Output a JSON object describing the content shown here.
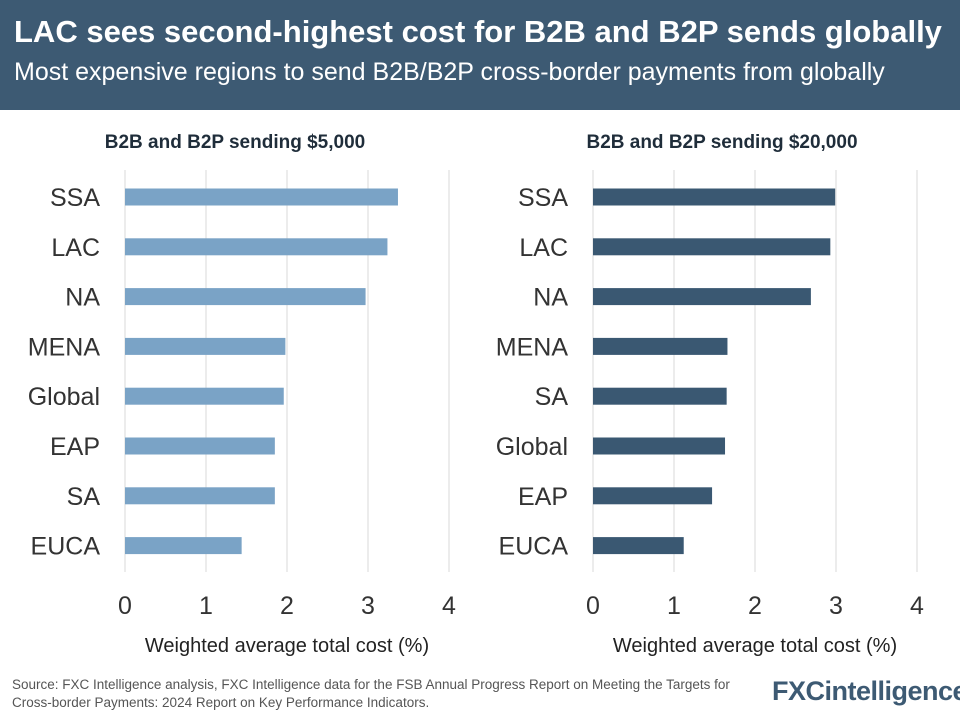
{
  "header": {
    "title": "LAC sees second-highest cost for B2B and B2P sends globally",
    "subtitle": "Most expensive regions to send B2B/B2P cross-border payments from globally"
  },
  "chart_data": [
    {
      "type": "bar",
      "orientation": "horizontal",
      "title": "B2B and B2P sending $5,000",
      "categories": [
        "SSA",
        "LAC",
        "NA",
        "MENA",
        "Global",
        "EAP",
        "SA",
        "EUCA"
      ],
      "values": [
        3.37,
        3.24,
        2.97,
        1.98,
        1.96,
        1.85,
        1.85,
        1.44
      ],
      "xlabel": "Weighted average total cost (%)",
      "xlim": [
        0,
        4
      ],
      "ticks": [
        "0",
        "1",
        "2",
        "3",
        "4"
      ],
      "bar_color": "#7aa3c6"
    },
    {
      "type": "bar",
      "orientation": "horizontal",
      "title": "B2B and B2P sending $20,000",
      "categories": [
        "SSA",
        "LAC",
        "NA",
        "MENA",
        "SA",
        "Global",
        "EAP",
        "EUCA"
      ],
      "values": [
        2.99,
        2.93,
        2.69,
        1.66,
        1.65,
        1.63,
        1.47,
        1.12
      ],
      "xlabel": "Weighted average total cost (%)",
      "xlim": [
        0,
        4
      ],
      "ticks": [
        "0",
        "1",
        "2",
        "3",
        "4"
      ],
      "bar_color": "#3a5872"
    }
  ],
  "footer": {
    "source": "Source: FXC Intelligence analysis, FXC Intelligence data for the FSB Annual Progress Report on Meeting the Targets for Cross-border Payments: 2024 Report on Key Performance Indicators.",
    "logo": "FXCintelligence"
  }
}
